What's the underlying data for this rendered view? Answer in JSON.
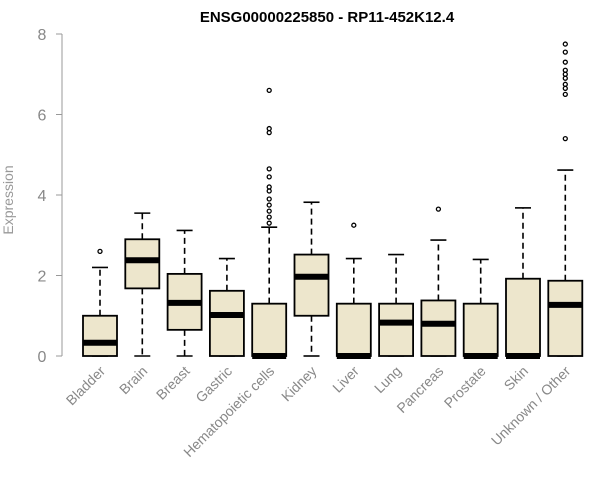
{
  "chart_data": {
    "type": "boxplot",
    "title": "ENSG00000225850 - RP11-452K12.4",
    "ylabel": "Expression",
    "xlabel": "",
    "ylim": [
      0,
      8
    ],
    "yticks": [
      0,
      2,
      4,
      6,
      8
    ],
    "grid": false,
    "box_color": "#EDE6CC",
    "line_color": "#000000",
    "categories": [
      "Bladder",
      "Brain",
      "Breast",
      "Gastric",
      "Hematopoietic cells",
      "Kidney",
      "Liver",
      "Lung",
      "Pancreas",
      "Prostate",
      "Skin",
      "Unknown / Other"
    ],
    "boxes": [
      {
        "whisker_low": 0.0,
        "q1": 0.0,
        "median": 0.33,
        "q3": 1.0,
        "whisker_high": 2.2,
        "outliers": [
          2.6
        ]
      },
      {
        "whisker_low": 0.0,
        "q1": 1.68,
        "median": 2.38,
        "q3": 2.9,
        "whisker_high": 3.55,
        "outliers": []
      },
      {
        "whisker_low": 0.0,
        "q1": 0.65,
        "median": 1.32,
        "q3": 2.04,
        "whisker_high": 3.12,
        "outliers": []
      },
      {
        "whisker_low": 0.0,
        "q1": 0.0,
        "median": 1.02,
        "q3": 1.62,
        "whisker_high": 2.42,
        "outliers": []
      },
      {
        "whisker_low": 0.0,
        "q1": 0.0,
        "median": 0.0,
        "q3": 1.3,
        "whisker_high": 3.2,
        "outliers": [
          3.3,
          3.45,
          3.6,
          3.75,
          3.9,
          4.1,
          4.2,
          4.45,
          4.65,
          5.55,
          5.65,
          6.6
        ]
      },
      {
        "whisker_low": 0.0,
        "q1": 1.0,
        "median": 1.97,
        "q3": 2.52,
        "whisker_high": 3.82,
        "outliers": []
      },
      {
        "whisker_low": 0.0,
        "q1": 0.0,
        "median": 0.0,
        "q3": 1.3,
        "whisker_high": 2.42,
        "outliers": [
          3.25
        ]
      },
      {
        "whisker_low": 0.0,
        "q1": 0.0,
        "median": 0.83,
        "q3": 1.3,
        "whisker_high": 2.52,
        "outliers": []
      },
      {
        "whisker_low": 0.0,
        "q1": 0.0,
        "median": 0.8,
        "q3": 1.38,
        "whisker_high": 2.88,
        "outliers": [
          3.65
        ]
      },
      {
        "whisker_low": 0.0,
        "q1": 0.0,
        "median": 0.0,
        "q3": 1.3,
        "whisker_high": 2.4,
        "outliers": []
      },
      {
        "whisker_low": 0.0,
        "q1": 0.0,
        "median": 0.0,
        "q3": 1.92,
        "whisker_high": 3.68,
        "outliers": []
      },
      {
        "whisker_low": 0.0,
        "q1": 0.0,
        "median": 1.27,
        "q3": 1.87,
        "whisker_high": 4.62,
        "outliers": [
          5.4,
          6.5,
          6.65,
          6.75,
          6.9,
          7.0,
          7.1,
          7.3,
          7.55,
          7.75
        ]
      }
    ]
  }
}
